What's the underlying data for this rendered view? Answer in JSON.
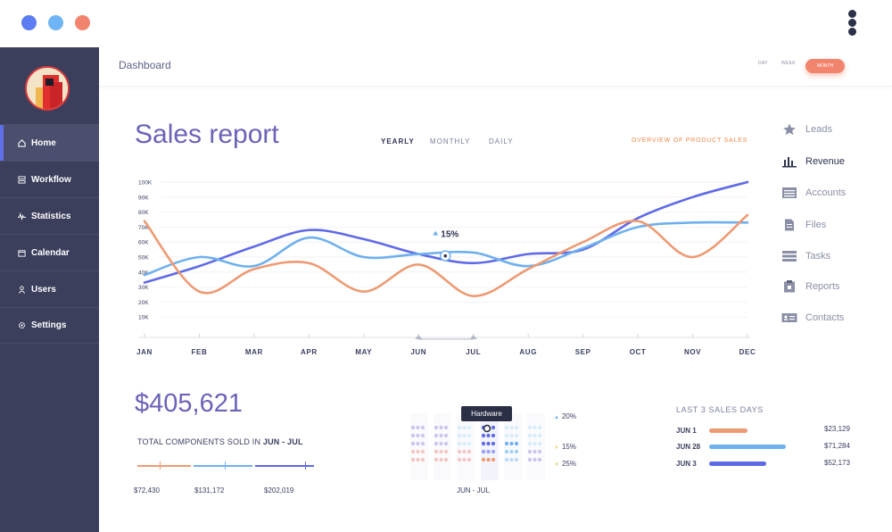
{
  "window": {
    "dots": [
      "#5b7cf2",
      "#6fb4f5",
      "#f2846d"
    ]
  },
  "header": {
    "breadcrumb": "Dashboard",
    "range": {
      "day": "DAY",
      "week": "WEEK",
      "month": "MONTH",
      "selected": "MONTH"
    }
  },
  "sidebar": {
    "items": [
      {
        "label": "Home",
        "icon": "home-icon",
        "active": true
      },
      {
        "label": "Workflow",
        "icon": "workflow-icon",
        "active": false
      },
      {
        "label": "Statistics",
        "icon": "statistics-icon",
        "active": false
      },
      {
        "label": "Calendar",
        "icon": "calendar-icon",
        "active": false
      },
      {
        "label": "Users",
        "icon": "user-icon",
        "active": false
      },
      {
        "label": "Settings",
        "icon": "gear-icon",
        "active": false
      }
    ]
  },
  "main": {
    "title": "Sales report",
    "tabs": [
      "YEARLY",
      "MONTHLY",
      "DAILY"
    ],
    "active_tab": "YEARLY",
    "overview_link": "OVERVIEW OF PRODUCT SALES",
    "callout": "15%"
  },
  "right_menu": [
    {
      "label": "Leads",
      "icon": "star-icon",
      "active": false
    },
    {
      "label": "Revenue",
      "icon": "bar-chart-icon",
      "active": true
    },
    {
      "label": "Accounts",
      "icon": "accounts-icon",
      "active": false
    },
    {
      "label": "Files",
      "icon": "file-icon",
      "active": false
    },
    {
      "label": "Tasks",
      "icon": "tasks-icon",
      "active": false
    },
    {
      "label": "Reports",
      "icon": "clipboard-icon",
      "active": false
    },
    {
      "label": "Contacts",
      "icon": "contact-card-icon",
      "active": false
    }
  ],
  "chart_data": {
    "type": "line",
    "categories": [
      "JAN",
      "FEB",
      "MAR",
      "APR",
      "MAY",
      "JUN",
      "JUL",
      "AUG",
      "SEP",
      "OCT",
      "NOV",
      "DEC"
    ],
    "y_ticks": [
      "100K",
      "90K",
      "80K",
      "70K",
      "60K",
      "50K",
      "40K",
      "30K",
      "20K",
      "10K"
    ],
    "ylim": [
      0,
      100000
    ],
    "grid": true,
    "colors": {
      "dark": "#5f6ae6",
      "light": "#6fb0ee",
      "orange": "#ee9a73"
    },
    "series": [
      {
        "color": "#5f6ae6",
        "values": [
          33000,
          44000,
          57000,
          68000,
          62000,
          52000,
          46000,
          52000,
          55000,
          76000,
          90000,
          100000
        ]
      },
      {
        "color": "#6fb0ee",
        "values": [
          38000,
          50000,
          44000,
          63000,
          50000,
          52000,
          53000,
          44000,
          56000,
          70000,
          73000,
          73000
        ]
      },
      {
        "color": "#ee9a73",
        "values": [
          74000,
          27000,
          42000,
          46000,
          27000,
          45000,
          24000,
          42000,
          60000,
          74000,
          50000,
          78000
        ]
      }
    ],
    "highlight": {
      "category": "JUN",
      "value": 52000,
      "label": "15%"
    }
  },
  "stats": {
    "total_amount": "$405,621",
    "total_label_prefix": "TOTAL COMPONENTS SOLD IN ",
    "total_label_range": "JUN - JUL",
    "amounts": [
      "$72,430",
      "$131,172",
      "$202,019"
    ],
    "amount_colors": [
      "#ee9a73",
      "#6fb0ee",
      "#5f6ae6"
    ]
  },
  "heatmap": {
    "label": "JUN - JUL",
    "tooltip": "Hardware",
    "percents": [
      {
        "label": "20%",
        "trend": "up"
      },
      {
        "label": "15%",
        "trend": "down"
      },
      {
        "label": "25%",
        "trend": "down"
      }
    ]
  },
  "last_sales": {
    "title": "LAST 3 SALES DAYS",
    "days": [
      {
        "date": "JUN 1",
        "value": "$23,129",
        "fraction": 0.5,
        "color": "#ee9a73"
      },
      {
        "date": "JUN 28",
        "value": "$71,284",
        "fraction": 1.0,
        "color": "#6fb0ee"
      },
      {
        "date": "JUN 3",
        "value": "$52,173",
        "fraction": 0.74,
        "color": "#5f6ae6"
      }
    ]
  }
}
